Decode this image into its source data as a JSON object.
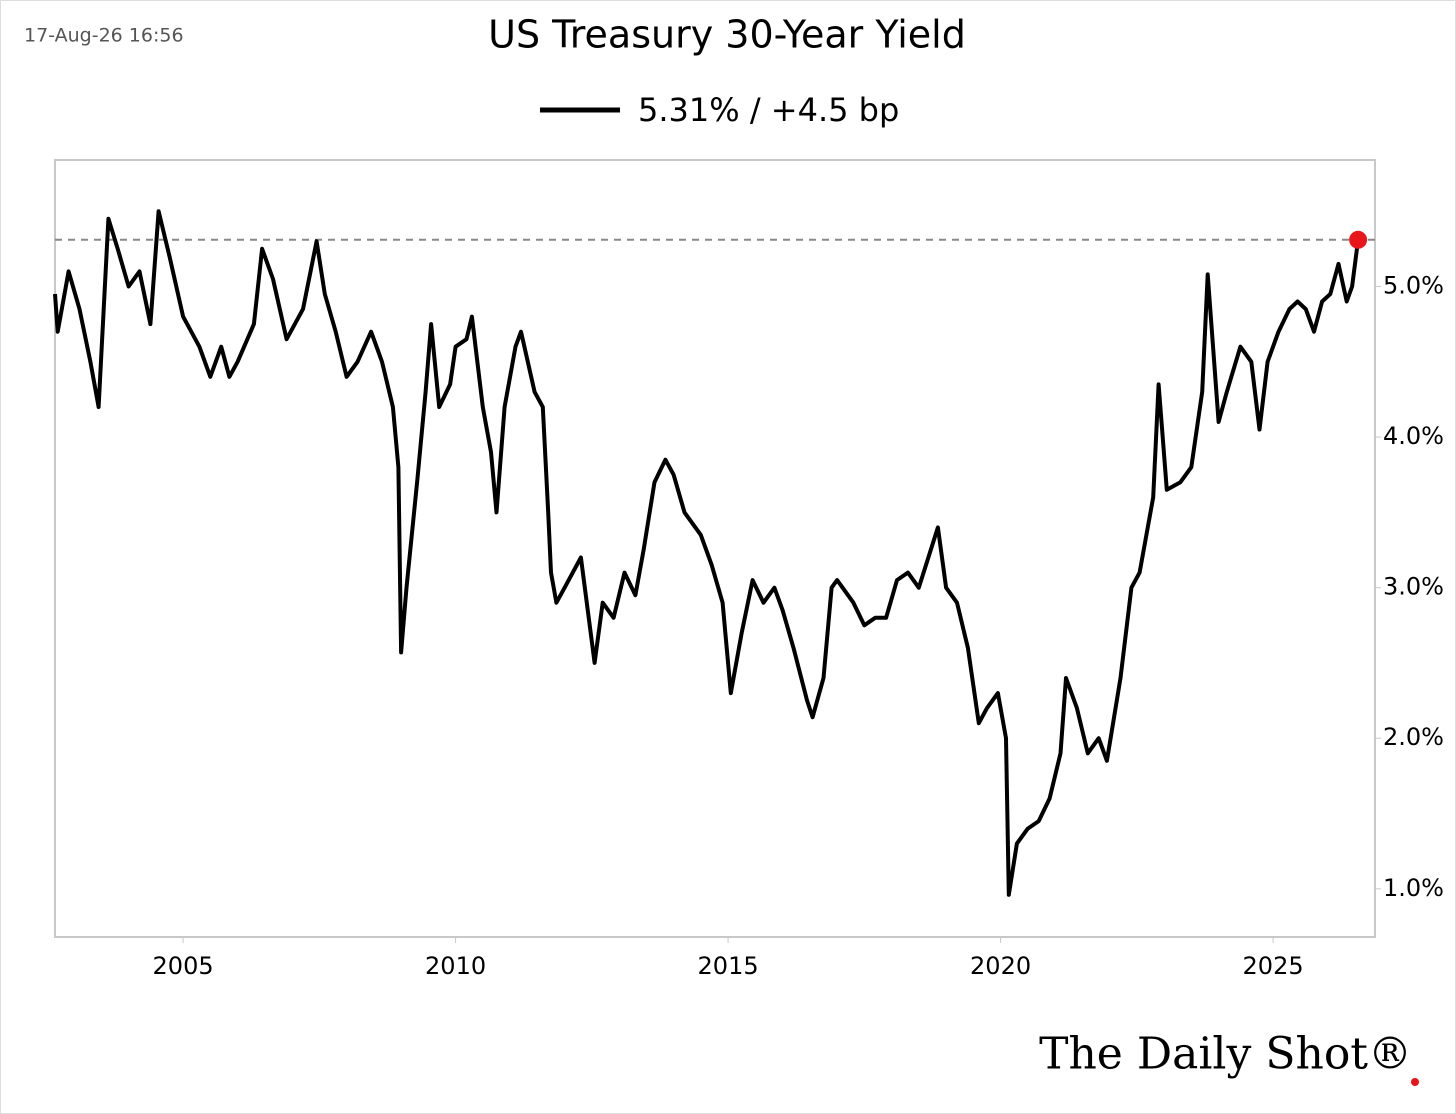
{
  "chart_data": {
    "type": "line",
    "title": "US Treasury 30-Year Yield",
    "timestamp": "17-Aug-26 16:56",
    "source": "The Daily Shot®",
    "x": [
      2002.65,
      2002.7,
      2002.9,
      2003.1,
      2003.3,
      2003.45,
      2003.63,
      2003.8,
      2004.0,
      2004.2,
      2004.4,
      2004.55,
      2004.75,
      2005.0,
      2005.3,
      2005.5,
      2005.7,
      2005.85,
      2006.0,
      2006.3,
      2006.45,
      2006.65,
      2006.9,
      2007.2,
      2007.45,
      2007.6,
      2007.8,
      2008.0,
      2008.2,
      2008.45,
      2008.65,
      2008.85,
      2008.95,
      2009.0,
      2009.1,
      2009.3,
      2009.45,
      2009.55,
      2009.7,
      2009.9,
      2010.0,
      2010.2,
      2010.3,
      2010.5,
      2010.65,
      2010.75,
      2010.9,
      2011.1,
      2011.2,
      2011.45,
      2011.6,
      2011.7,
      2011.75,
      2011.85,
      2012.0,
      2012.3,
      2012.55,
      2012.7,
      2012.9,
      2013.1,
      2013.3,
      2013.45,
      2013.65,
      2013.85,
      2014.0,
      2014.2,
      2014.5,
      2014.7,
      2014.9,
      2015.05,
      2015.25,
      2015.45,
      2015.65,
      2015.85,
      2016.0,
      2016.2,
      2016.45,
      2016.55,
      2016.75,
      2016.9,
      2017.0,
      2017.3,
      2017.5,
      2017.7,
      2017.9,
      2018.1,
      2018.3,
      2018.5,
      2018.85,
      2019.0,
      2019.2,
      2019.4,
      2019.6,
      2019.75,
      2019.95,
      2020.1,
      2020.15,
      2020.3,
      2020.5,
      2020.7,
      2020.9,
      2021.1,
      2021.2,
      2021.4,
      2021.6,
      2021.8,
      2021.95,
      2022.2,
      2022.4,
      2022.55,
      2022.8,
      2022.9,
      2023.05,
      2023.3,
      2023.5,
      2023.7,
      2023.8,
      2024.0,
      2024.15,
      2024.4,
      2024.6,
      2024.75,
      2024.9,
      2025.1,
      2025.3,
      2025.45,
      2025.6,
      2025.75,
      2025.9,
      2026.05,
      2026.2,
      2026.35,
      2026.45,
      2026.56
    ],
    "series": [
      {
        "name": "5.31% / +4.5 bp",
        "color": "#000000",
        "values": [
          4.95,
          4.7,
          5.1,
          4.85,
          4.5,
          4.2,
          5.45,
          5.25,
          5.0,
          5.1,
          4.75,
          5.5,
          5.2,
          4.8,
          4.6,
          4.4,
          4.6,
          4.4,
          4.5,
          4.75,
          5.25,
          5.05,
          4.65,
          4.85,
          5.3,
          4.95,
          4.7,
          4.4,
          4.5,
          4.7,
          4.5,
          4.2,
          3.8,
          2.57,
          3.0,
          3.72,
          4.3,
          4.75,
          4.2,
          4.35,
          4.6,
          4.65,
          4.8,
          4.2,
          3.9,
          3.5,
          4.2,
          4.6,
          4.7,
          4.3,
          4.2,
          3.5,
          3.1,
          2.9,
          3.0,
          3.2,
          2.5,
          2.9,
          2.8,
          3.1,
          2.95,
          3.25,
          3.7,
          3.85,
          3.75,
          3.5,
          3.35,
          3.15,
          2.9,
          2.3,
          2.7,
          3.05,
          2.9,
          3.0,
          2.85,
          2.6,
          2.25,
          2.14,
          2.4,
          3.0,
          3.05,
          2.9,
          2.75,
          2.8,
          2.8,
          3.05,
          3.1,
          3.0,
          3.4,
          3.0,
          2.9,
          2.6,
          2.1,
          2.2,
          2.3,
          2.0,
          0.96,
          1.3,
          1.4,
          1.45,
          1.6,
          1.9,
          2.4,
          2.2,
          1.9,
          2.0,
          1.85,
          2.4,
          3.0,
          3.1,
          3.6,
          4.35,
          3.65,
          3.7,
          3.8,
          4.3,
          5.08,
          4.1,
          4.3,
          4.6,
          4.5,
          4.05,
          4.5,
          4.7,
          4.85,
          4.9,
          4.85,
          4.7,
          4.9,
          4.95,
          5.15,
          4.9,
          5.0,
          5.31
        ]
      }
    ],
    "hline": 5.31,
    "end_marker_color": "#e8151b",
    "xlim": [
      2002.65,
      2026.87
    ],
    "ylim": [
      0.68,
      5.84
    ],
    "xticks": [
      2005,
      2010,
      2015,
      2020,
      2025
    ],
    "yticks": [
      {
        "value": 1,
        "label": "1.0%"
      },
      {
        "value": 2,
        "label": "2.0%"
      },
      {
        "value": 3,
        "label": "3.0%"
      },
      {
        "value": 4,
        "label": "4.0%"
      },
      {
        "value": 5,
        "label": "5.0%"
      }
    ],
    "grid": false
  }
}
